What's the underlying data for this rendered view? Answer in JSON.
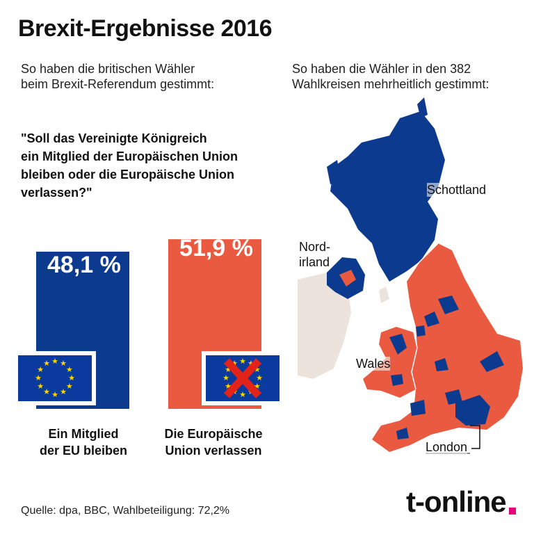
{
  "title": "Brexit-Ergebnisse 2016",
  "subtitle_left_1": "So haben die britischen Wähler",
  "subtitle_left_2": "beim Brexit-Referendum gestimmt:",
  "subtitle_right_1": "So haben die Wähler in den 382",
  "subtitle_right_2": "Wahlkreisen mehrheitlich gestimmt:",
  "question_lines": [
    "\"Soll das Vereinigte Königreich",
    "ein Mitglied der Europäischen Union",
    "bleiben oder die Europäische Union",
    "verlassen?\""
  ],
  "colors": {
    "remain": "#0b3a8f",
    "leave": "#ea5a40",
    "flag_blue": "#0b3a9e",
    "flag_star": "#ffd500",
    "cross": "#e2231a",
    "land_other": "#ece3dc",
    "logo_dot": "#e6007e"
  },
  "chart_data": {
    "type": "bar",
    "categories": [
      "Ein Mitglied der EU bleiben",
      "Die Europäische Union verlassen"
    ],
    "values": [
      48.1,
      51.9
    ],
    "value_labels": [
      "48,1 %",
      "51,9 %"
    ],
    "category_label_lines": [
      [
        "Ein Mitglied",
        "der EU bleiben"
      ],
      [
        "Die Europäische",
        "Union verlassen"
      ]
    ],
    "icons": [
      "eu-flag-icon",
      "eu-flag-crossed-icon"
    ]
  },
  "map": {
    "labels": {
      "scotland": "Schottland",
      "northern_ireland_1": "Nord-",
      "northern_ireland_2": "irland",
      "wales": "Wales",
      "london": "London"
    }
  },
  "source": "Quelle: dpa, BBC, Wahlbeteiligung: 72,2%",
  "logo": "t-online"
}
